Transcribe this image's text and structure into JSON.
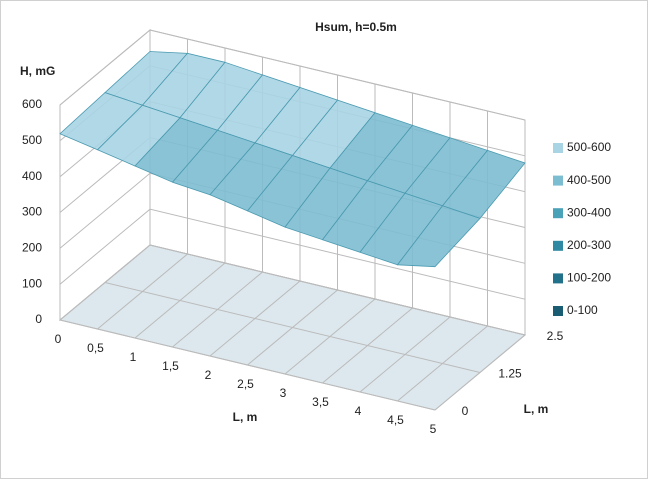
{
  "chart_data": {
    "type": "surface",
    "title": "Hsum, h=0.5m",
    "zlabel": "H, mG",
    "xlabel": "L, m",
    "ylabel": "L, m",
    "categories": [
      "0",
      "0,5",
      "1",
      "1,5",
      "2",
      "2,5",
      "3",
      "3,5",
      "4",
      "4,5",
      "5"
    ],
    "series": [
      {
        "name": "0",
        "values": [
          520,
          500,
          480,
          460,
          450,
          430,
          410,
          400,
          390,
          380,
          400
        ]
      },
      {
        "name": "1.25",
        "values": [
          530,
          520,
          510,
          500,
          490,
          480,
          470,
          460,
          450,
          440,
          430
        ]
      },
      {
        "name": "2.5",
        "values": [
          540,
          560,
          560,
          550,
          540,
          530,
          520,
          510,
          500,
          490,
          480
        ]
      }
    ],
    "zlim": [
      0,
      600
    ],
    "zticks": [
      0,
      100,
      200,
      300,
      400,
      500,
      600
    ],
    "grid": true,
    "legend_position": "right",
    "legend": [
      {
        "label": "500-600",
        "color": "#a9d4e4"
      },
      {
        "label": "400-500",
        "color": "#7dbdd2"
      },
      {
        "label": "300-400",
        "color": "#4aa2b8"
      },
      {
        "label": "200-300",
        "color": "#2f89a2"
      },
      {
        "label": "100-200",
        "color": "#22718a"
      },
      {
        "label": "0-100",
        "color": "#1a5d72"
      }
    ]
  }
}
